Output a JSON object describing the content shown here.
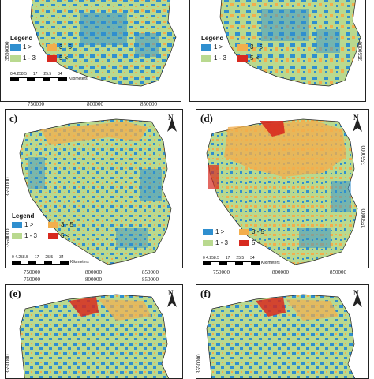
{
  "colors": {
    "class1": "#2f8fcf",
    "class2": "#b9d98f",
    "class3": "#f3ae4c",
    "class4": "#d72a1f",
    "frame": "#222222"
  },
  "legend": {
    "title": "Legend",
    "items": [
      {
        "label": "1 >",
        "color_key": "class1"
      },
      {
        "label": "3 - 5",
        "color_key": "class3"
      },
      {
        "label": "1 - 3",
        "color_key": "class2"
      },
      {
        "label": "5 <",
        "color_key": "class4"
      }
    ]
  },
  "scalebar": {
    "ticks": [
      "0 4.258.5",
      "17",
      "25.5",
      "34"
    ],
    "unit": "Kilometers"
  },
  "north_label": "N",
  "x_ticks": [
    "750000",
    "800000",
    "850000"
  ],
  "y_tick": "3550000",
  "panels": [
    {
      "id": "a",
      "label": "",
      "show_legend": true
    },
    {
      "id": "b",
      "label": "",
      "show_legend": true
    },
    {
      "id": "c",
      "label": "c)",
      "show_legend": true
    },
    {
      "id": "d",
      "label": "(d)",
      "show_legend": true
    },
    {
      "id": "e",
      "label": "(e)",
      "show_legend": false
    },
    {
      "id": "f",
      "label": "(f)",
      "show_legend": false
    }
  ]
}
